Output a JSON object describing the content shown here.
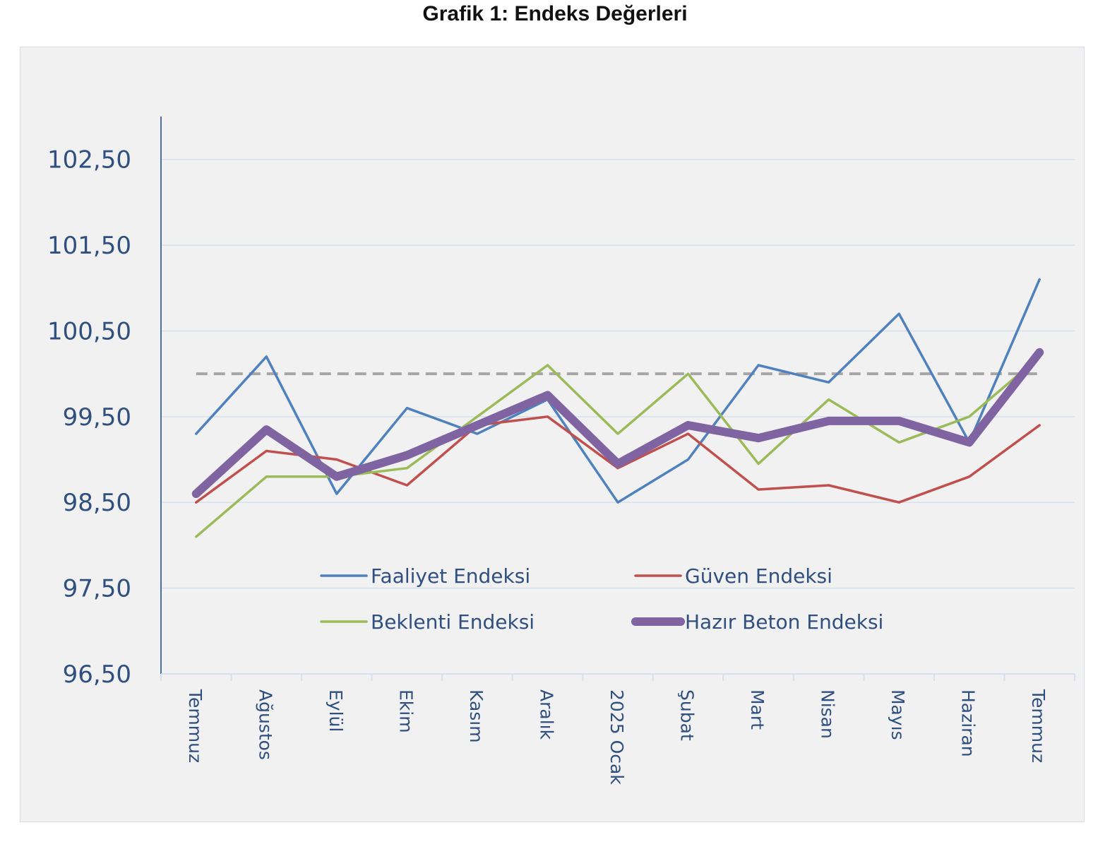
{
  "chart_data": {
    "type": "line",
    "title": "Grafik 1: Endeks Değerleri",
    "xlabel": "",
    "ylabel": "",
    "categories": [
      "Temmuz",
      "Ağustos",
      "Eylül",
      "Ekim",
      "Kasım",
      "Aralık",
      "2025 Ocak",
      "Şubat",
      "Mart",
      "Nisan",
      "Mayıs",
      "Haziran",
      "Temmuz"
    ],
    "y_ticks": [
      "96,50",
      "97,50",
      "98,50",
      "99,50",
      "100,50",
      "101,50",
      "102,50"
    ],
    "y_tick_values": [
      96.5,
      97.5,
      98.5,
      99.5,
      100.5,
      101.5,
      102.5
    ],
    "ylim": [
      96.5,
      103.0
    ],
    "grid": true,
    "legend_position": "bottom-center-inside",
    "reference_line": {
      "value": 100.0,
      "style": "dashed",
      "color": "#a6a6a6"
    },
    "series": [
      {
        "name": "Faaliyet Endeksi",
        "color": "#4f81bd",
        "width": "thin",
        "values": [
          99.3,
          100.2,
          98.6,
          99.6,
          99.3,
          99.7,
          98.5,
          99.0,
          100.1,
          99.9,
          100.7,
          99.2,
          101.1
        ]
      },
      {
        "name": "Güven Endeksi",
        "color": "#c0504d",
        "width": "thin",
        "values": [
          98.5,
          99.1,
          99.0,
          98.7,
          99.4,
          99.5,
          98.9,
          99.3,
          98.65,
          98.7,
          98.5,
          98.8,
          99.4
        ]
      },
      {
        "name": "Beklenti Endeksi",
        "color": "#9bbb59",
        "width": "thin",
        "values": [
          98.1,
          98.8,
          98.8,
          98.9,
          99.5,
          100.1,
          99.3,
          100.0,
          98.95,
          99.7,
          99.2,
          99.5,
          100.2
        ]
      },
      {
        "name": "Hazır Beton Endeksi",
        "color": "#8064a2",
        "width": "thick",
        "values": [
          98.6,
          99.35,
          98.8,
          99.05,
          99.4,
          99.75,
          98.95,
          99.4,
          99.25,
          99.45,
          99.45,
          99.2,
          100.25
        ]
      }
    ]
  }
}
